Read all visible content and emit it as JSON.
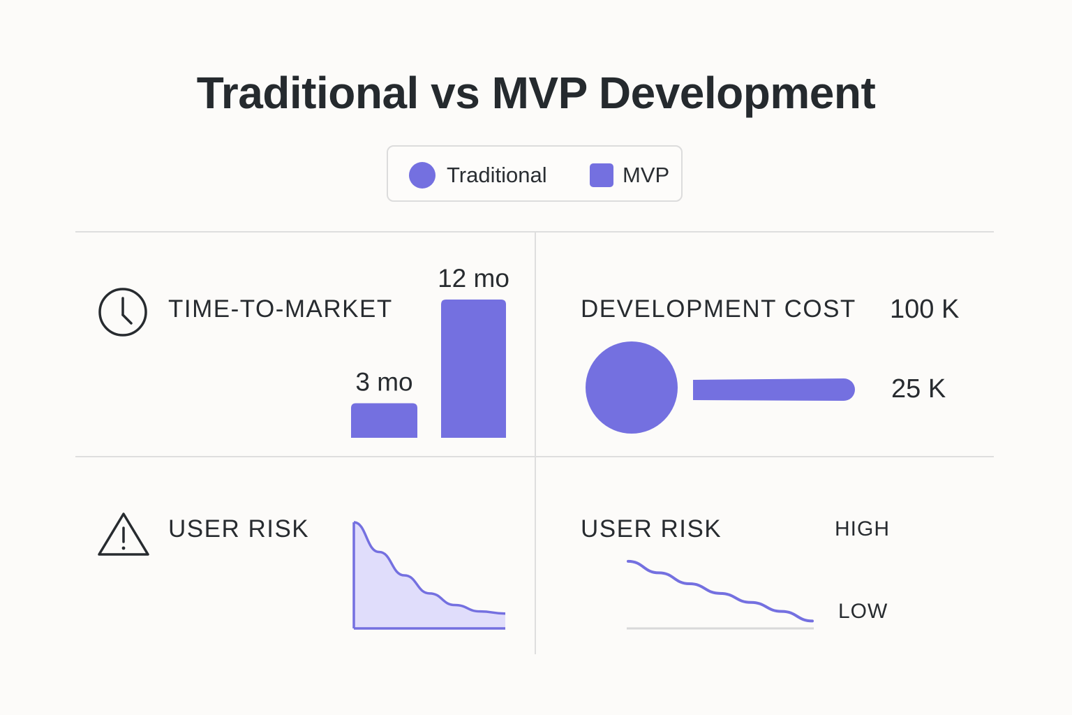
{
  "title": "Traditional vs MVP Development",
  "legend": {
    "traditional": "Traditional",
    "mvp": "MVP"
  },
  "colors": {
    "accent": "#7470e0",
    "fill_light": "#e0ddfb",
    "stroke_dark": "#272b2f",
    "gridline": "#dedede",
    "baseline": "#d9d9d9"
  },
  "icons": {
    "time": "clock-icon",
    "risk": "warning-triangle-icon"
  },
  "chart_data": [
    {
      "type": "bar",
      "title": "TIME-TO-MARKET",
      "categories": [
        "MVP",
        "Traditional"
      ],
      "values": [
        3,
        12
      ],
      "value_labels": [
        "3 mo",
        "12 mo"
      ],
      "unit": "mo",
      "ylim": [
        0,
        12
      ]
    },
    {
      "type": "bar",
      "title": "DEVELOPMENT COST",
      "categories": [
        "Traditional",
        "MVP"
      ],
      "values": [
        100,
        25
      ],
      "value_labels": [
        "100 K",
        "25 K"
      ],
      "unit": "K"
    },
    {
      "type": "area",
      "title": "USER RISK",
      "series": [
        {
          "values": [
            1.0,
            0.72,
            0.5,
            0.33,
            0.22,
            0.16,
            0.14
          ]
        }
      ]
    },
    {
      "type": "line",
      "title": "USER RISK",
      "y_tick_labels": [
        "HIGH",
        "LOW"
      ],
      "series": [
        {
          "values": [
            0.98,
            0.8,
            0.63,
            0.48,
            0.34,
            0.2,
            0.05
          ]
        }
      ]
    }
  ]
}
